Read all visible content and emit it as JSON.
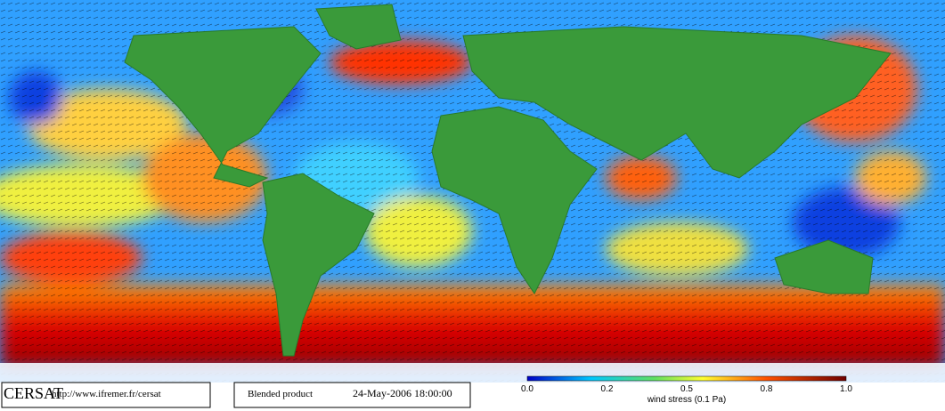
{
  "footer": {
    "brand": "CERSAT",
    "url": "http://www.ifremer.fr/cersat",
    "product": "Blended product",
    "date": "24-May-2006 18:00:00"
  },
  "colorbar": {
    "ticks": [
      "0.0",
      "0.2",
      "0.5",
      "0.8",
      "1.0"
    ],
    "label": "wind stress (0.1 Pa)"
  }
}
